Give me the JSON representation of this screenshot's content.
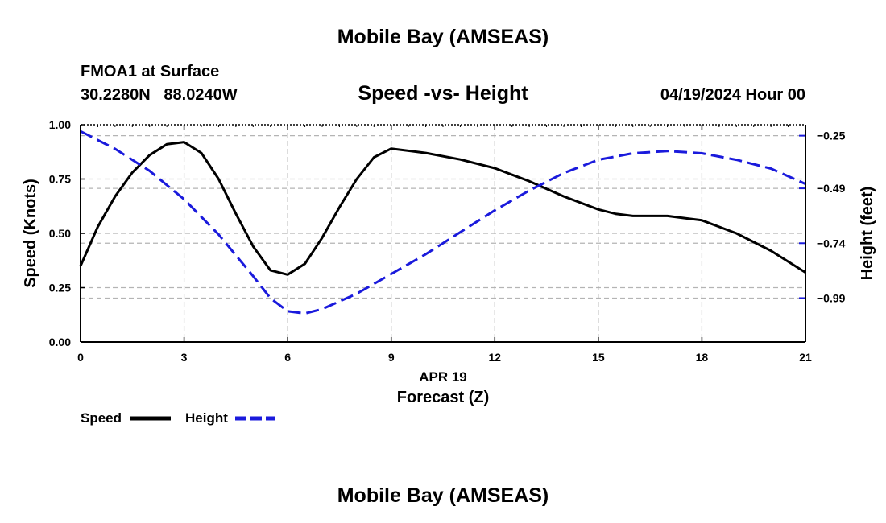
{
  "header": {
    "title": "Mobile Bay (AMSEAS)",
    "station_line": "FMOA1 at Surface",
    "coords_line": "30.2280N   88.0240W",
    "chart_title": "Speed -vs- Height",
    "datetime": "04/19/2024 Hour 00"
  },
  "footer": {
    "title": "Mobile Bay (AMSEAS)"
  },
  "legend": {
    "speed_label": "Speed",
    "height_label": "Height"
  },
  "colors": {
    "speed": "#000000",
    "height": "#1a1adc",
    "grid": "#b4b4b4"
  },
  "chart_data": {
    "type": "line",
    "xlabel": "Forecast (Z)",
    "xsublabel": "APR 19",
    "ylabel_left": "Speed (Knots)",
    "ylabel_right": "Height (feet)",
    "xlim": [
      0,
      21
    ],
    "ylim_left": [
      0,
      1
    ],
    "ylim_right": [
      -1.19,
      -0.2
    ],
    "x_ticks": [
      "0",
      "3",
      "6",
      "9",
      "12",
      "15",
      "18",
      "21"
    ],
    "y_left_ticks": [
      "0.00",
      "0.25",
      "0.50",
      "0.75",
      "1.00"
    ],
    "y_right_ticks": [
      "-0.25",
      "-0.49",
      "-0.74",
      "-0.99"
    ],
    "grid": true,
    "series": [
      {
        "name": "Speed",
        "axis": "left",
        "x": [
          0,
          0.5,
          1,
          1.5,
          2,
          2.5,
          3,
          3.5,
          4,
          4.5,
          5,
          5.5,
          6,
          6.5,
          7,
          7.5,
          8,
          8.5,
          9,
          10,
          11,
          12,
          13,
          14,
          15,
          15.5,
          16,
          17,
          17.5,
          18,
          19,
          20,
          21
        ],
        "values": [
          0.35,
          0.53,
          0.67,
          0.78,
          0.86,
          0.91,
          0.92,
          0.87,
          0.75,
          0.59,
          0.44,
          0.33,
          0.31,
          0.36,
          0.48,
          0.62,
          0.75,
          0.85,
          0.89,
          0.87,
          0.84,
          0.8,
          0.74,
          0.67,
          0.61,
          0.59,
          0.58,
          0.58,
          0.57,
          0.56,
          0.5,
          0.42,
          0.32
        ]
      },
      {
        "name": "Height",
        "axis": "right",
        "x": [
          0,
          1,
          2,
          3,
          4,
          5,
          5.5,
          6,
          6.5,
          7,
          8,
          9,
          10,
          11,
          12,
          13,
          14,
          15,
          16,
          17,
          18,
          19,
          20,
          21
        ],
        "values": [
          -0.23,
          -0.31,
          -0.41,
          -0.54,
          -0.7,
          -0.89,
          -0.99,
          -1.05,
          -1.06,
          -1.04,
          -0.97,
          -0.88,
          -0.79,
          -0.69,
          -0.59,
          -0.5,
          -0.42,
          -0.36,
          -0.33,
          -0.32,
          -0.33,
          -0.36,
          -0.4,
          -0.47
        ]
      }
    ]
  }
}
